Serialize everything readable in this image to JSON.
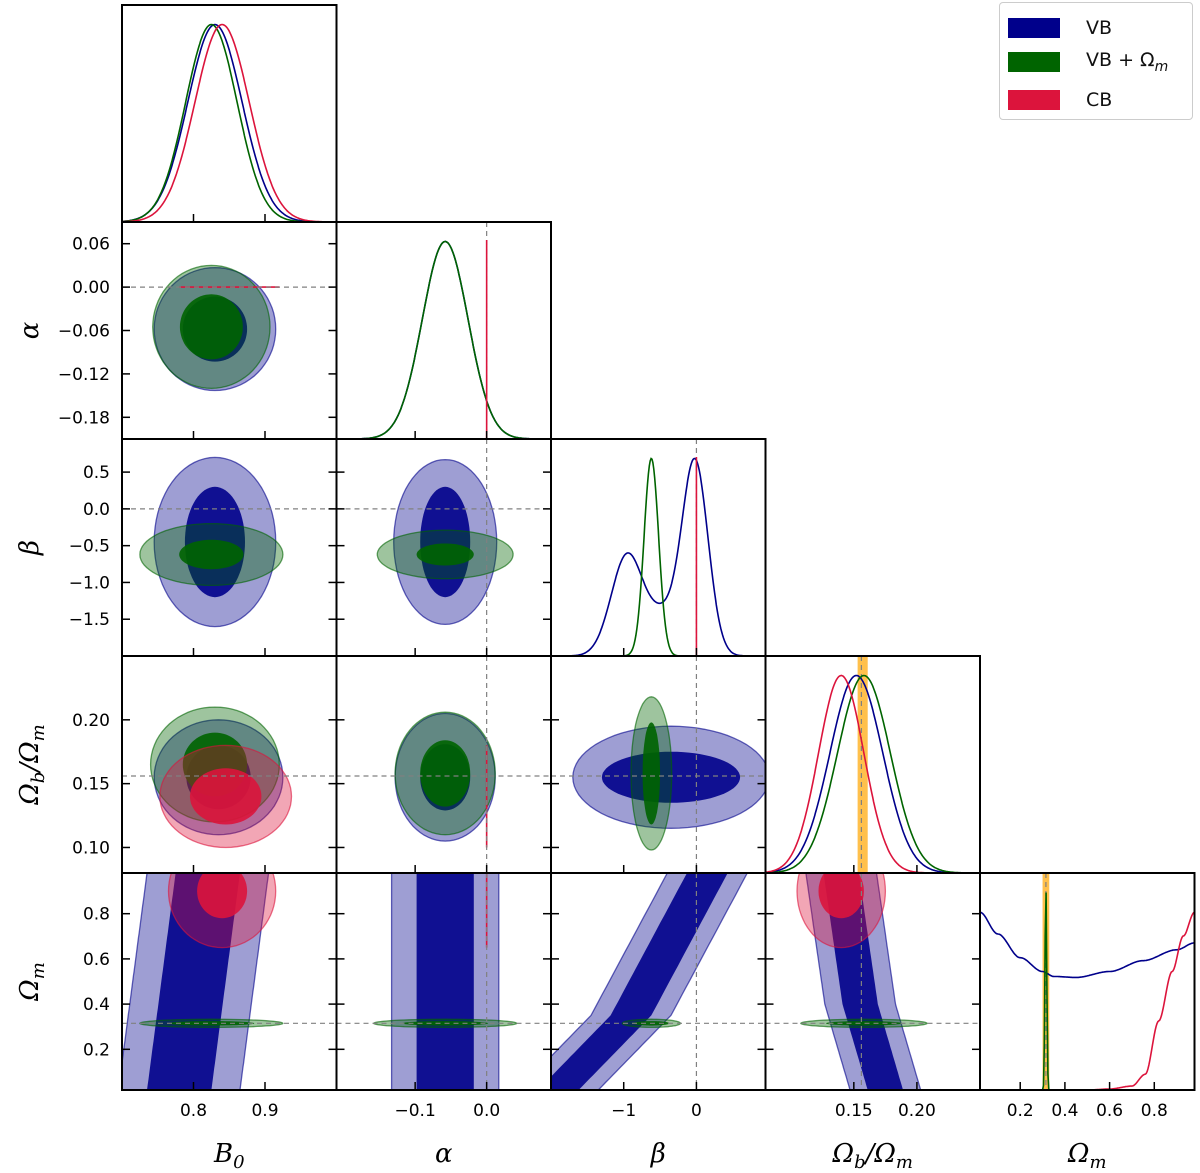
{
  "colors": {
    "vb": "#00008b",
    "vbOm": "#006400",
    "cb": "#dc143c",
    "band": "#ffa500",
    "gray": "#808080",
    "frame": "#000000"
  },
  "legend": {
    "entries": [
      {
        "name": "VB",
        "color": "#00008b"
      },
      {
        "name": "VB + Ω",
        "sub": "m",
        "color": "#006400"
      },
      {
        "name": "CB",
        "color": "#dc143c"
      }
    ]
  },
  "chart_data": {
    "type": "corner",
    "parameters": [
      {
        "key": "B0",
        "label": "B",
        "sub": "0",
        "range": [
          0.7,
          1.0
        ],
        "ticks": [
          0.8,
          0.9
        ],
        "tick_labels": [
          "0.8",
          "0.9"
        ],
        "reference": null
      },
      {
        "key": "alpha",
        "label": "α",
        "range": [
          -0.21,
          0.09
        ],
        "ticks": [
          -0.18,
          -0.12,
          -0.06,
          0.0,
          0.06
        ],
        "tick_labels": [
          "−0.18",
          "−0.12",
          "−0.06",
          "0.00",
          "0.06"
        ],
        "x_ticks": [
          -0.1,
          0.0
        ],
        "x_tick_labels": [
          "−0.1",
          "0.0"
        ],
        "reference": 0.0
      },
      {
        "key": "beta",
        "label": "β",
        "range": [
          -2.0,
          0.95
        ],
        "ticks": [
          -1.5,
          -1.0,
          -0.5,
          0.0,
          0.5
        ],
        "tick_labels": [
          "−1.5",
          "−1.0",
          "−0.5",
          "0.0",
          "0.5"
        ],
        "x_ticks": [
          -1,
          0
        ],
        "x_tick_labels": [
          "−1",
          "0"
        ],
        "reference": 0.0
      },
      {
        "key": "fb",
        "label": "Ω",
        "sub": "b",
        "label2": "/Ω",
        "sub2": "m",
        "range": [
          0.08,
          0.25
        ],
        "ticks": [
          0.1,
          0.15,
          0.2
        ],
        "tick_labels": [
          "0.10",
          "0.15",
          "0.20"
        ],
        "x_ticks": [
          0.15,
          0.2
        ],
        "x_tick_labels": [
          "0.15",
          "0.20"
        ],
        "reference": 0.156,
        "prior_band": [
          0.153,
          0.161
        ]
      },
      {
        "key": "Om",
        "label": "Ω",
        "sub": "m",
        "range": [
          0.02,
          0.98
        ],
        "ticks": [
          0.2,
          0.4,
          0.6,
          0.8
        ],
        "tick_labels": [
          "0.2",
          "0.4",
          "0.6",
          "0.8"
        ],
        "reference": 0.315,
        "prior_band": [
          0.3,
          0.33
        ]
      }
    ],
    "series": [
      {
        "name": "VB",
        "marginals": [
          {
            "type": "gauss",
            "mean": 0.83,
            "sd": 0.038
          },
          {
            "type": "gauss",
            "mean": -0.058,
            "sd": 0.032
          },
          {
            "type": "mix",
            "parts": [
              {
                "mean": -0.02,
                "sd": 0.18,
                "w": 0.65
              },
              {
                "mean": -0.95,
                "sd": 0.22,
                "w": 0.34
              },
              {
                "mean": -0.45,
                "sd": 0.2,
                "w": 0.12
              }
            ]
          },
          {
            "type": "gauss",
            "mean": 0.152,
            "sd": 0.021
          },
          {
            "type": "curve",
            "x": [
              0.02,
              0.1,
              0.2,
              0.3,
              0.35,
              0.45,
              0.6,
              0.75,
              0.9,
              0.98
            ],
            "y": [
              0.9,
              0.79,
              0.67,
              0.6,
              0.575,
              0.57,
              0.6,
              0.655,
              0.71,
              0.745
            ]
          }
        ],
        "contours": [
          {
            "x": 0,
            "y": 1,
            "cx": 0.83,
            "cy": -0.058,
            "r68": [
              0.045,
              0.045
            ],
            "r95": [
              0.085,
              0.085
            ],
            "angle": 0
          },
          {
            "x": 0,
            "y": 2,
            "cx": 0.83,
            "cy": -0.45,
            "r68": [
              0.042,
              0.75
            ],
            "r95": [
              0.085,
              1.15
            ],
            "angle": 0
          },
          {
            "x": 1,
            "y": 2,
            "cx": -0.058,
            "cy": -0.45,
            "r68": [
              0.035,
              0.75
            ],
            "r95": [
              0.072,
              1.12
            ],
            "angle": -10
          },
          {
            "x": 0,
            "y": 3,
            "cx": 0.835,
            "cy": 0.155,
            "r68": [
              0.045,
              0.025
            ],
            "r95": [
              0.09,
              0.045
            ],
            "angle": -45
          },
          {
            "x": 1,
            "y": 3,
            "cx": -0.058,
            "cy": 0.155,
            "r68": [
              0.035,
              0.026
            ],
            "r95": [
              0.07,
              0.05
            ],
            "angle": 0
          },
          {
            "x": 2,
            "y": 3,
            "cx": -0.35,
            "cy": 0.155,
            "r68": [
              0.95,
              0.02
            ],
            "r95": [
              1.35,
              0.04
            ],
            "angle": -20
          },
          {
            "x": 0,
            "y": 4,
            "kind": "band",
            "points": [
              [
                0.78,
                0.02
              ],
              [
                0.8,
                0.5
              ],
              [
                0.82,
                0.98
              ]
            ],
            "w68": 0.045,
            "w95": 0.085
          },
          {
            "x": 1,
            "y": 4,
            "kind": "band",
            "points": [
              [
                -0.058,
                0.02
              ],
              [
                -0.058,
                0.98
              ]
            ],
            "w68": 0.04,
            "w95": 0.075
          },
          {
            "x": 2,
            "y": 4,
            "kind": "band",
            "points": [
              [
                -1.9,
                0.02
              ],
              [
                -0.9,
                0.35
              ],
              [
                0.15,
                0.98
              ]
            ],
            "w68": 0.28,
            "w95": 0.55
          },
          {
            "x": 3,
            "y": 4,
            "kind": "band",
            "points": [
              [
                0.175,
                0.02
              ],
              [
                0.155,
                0.4
              ],
              [
                0.14,
                0.98
              ]
            ],
            "w68": 0.014,
            "w95": 0.028
          }
        ]
      },
      {
        "name": "VB + Ωm",
        "marginals": [
          {
            "type": "gauss",
            "mean": 0.825,
            "sd": 0.036
          },
          {
            "type": "gauss",
            "mean": -0.058,
            "sd": 0.032
          },
          {
            "type": "gauss",
            "mean": -0.62,
            "sd": 0.1
          },
          {
            "type": "gauss",
            "mean": 0.158,
            "sd": 0.021
          },
          {
            "type": "gauss",
            "mean": 0.315,
            "sd": 0.004
          }
        ],
        "contours": [
          {
            "x": 0,
            "y": 1,
            "cx": 0.825,
            "cy": -0.055,
            "r68": [
              0.044,
              0.045
            ],
            "r95": [
              0.082,
              0.085
            ],
            "angle": 0
          },
          {
            "x": 0,
            "y": 2,
            "cx": 0.825,
            "cy": -0.62,
            "r68": [
              0.045,
              0.2
            ],
            "r95": [
              0.1,
              0.42
            ],
            "angle": 10
          },
          {
            "x": 1,
            "y": 2,
            "cx": -0.058,
            "cy": -0.62,
            "r68": [
              0.04,
              0.15
            ],
            "r95": [
              0.095,
              0.33
            ],
            "angle": -18
          },
          {
            "x": 0,
            "y": 3,
            "cx": 0.83,
            "cy": 0.165,
            "r68": [
              0.045,
              0.025
            ],
            "r95": [
              0.09,
              0.045
            ],
            "angle": -40
          },
          {
            "x": 1,
            "y": 3,
            "cx": -0.058,
            "cy": 0.158,
            "r68": [
              0.035,
              0.026
            ],
            "r95": [
              0.07,
              0.048
            ],
            "angle": 0
          },
          {
            "x": 2,
            "y": 3,
            "cx": -0.62,
            "cy": 0.158,
            "r68": [
              0.12,
              0.04
            ],
            "r95": [
              0.28,
              0.06
            ],
            "angle": 0
          },
          {
            "x": 0,
            "y": 4,
            "cx": 0.825,
            "cy": 0.315,
            "r68": [
              0.06,
              0.01
            ],
            "r95": [
              0.1,
              0.018
            ],
            "angle": 0
          },
          {
            "x": 1,
            "y": 4,
            "cx": -0.058,
            "cy": 0.315,
            "r68": [
              0.06,
              0.01
            ],
            "r95": [
              0.1,
              0.018
            ],
            "angle": 0
          },
          {
            "x": 2,
            "y": 4,
            "cx": -0.62,
            "cy": 0.315,
            "r68": [
              0.25,
              0.01
            ],
            "r95": [
              0.4,
              0.018
            ],
            "angle": 0
          },
          {
            "x": 3,
            "y": 4,
            "cx": 0.158,
            "cy": 0.315,
            "r68": [
              0.03,
              0.01
            ],
            "r95": [
              0.05,
              0.018
            ],
            "angle": 0
          }
        ]
      },
      {
        "name": "CB",
        "marginals": [
          {
            "type": "gauss",
            "mean": 0.84,
            "sd": 0.038
          },
          {
            "type": "delta",
            "at": 0.0
          },
          {
            "type": "delta",
            "at": 0.0
          },
          {
            "type": "gauss",
            "mean": 0.14,
            "sd": 0.018
          },
          {
            "type": "curve",
            "x": [
              0.02,
              0.5,
              0.6,
              0.7,
              0.76,
              0.82,
              0.88,
              0.93,
              0.98
            ],
            "y": [
              0.0,
              0.0,
              0.005,
              0.02,
              0.08,
              0.35,
              0.6,
              0.78,
              0.9
            ]
          }
        ],
        "contours": [
          {
            "x": 0,
            "y": 1,
            "kind": "hline",
            "from": 0.78,
            "to": 0.92,
            "at": 0.0
          },
          {
            "x": 0,
            "y": 3,
            "cx": 0.845,
            "cy": 0.14,
            "r68": [
              0.05,
              0.022
            ],
            "r95": [
              0.092,
              0.04
            ],
            "angle": -35
          },
          {
            "x": 1,
            "y": 3,
            "kind": "vline",
            "at": 0.0,
            "from": 0.1,
            "to": 0.18
          },
          {
            "x": 0,
            "y": 4,
            "cx": 0.84,
            "cy": 0.9,
            "r68": [
              0.035,
              0.12
            ],
            "r95": [
              0.075,
              0.25
            ],
            "angle": 0
          },
          {
            "x": 1,
            "y": 4,
            "kind": "vline",
            "at": 0.0,
            "from": 0.65,
            "to": 0.98
          },
          {
            "x": 3,
            "y": 4,
            "cx": 0.14,
            "cy": 0.9,
            "r68": [
              0.018,
              0.12
            ],
            "r95": [
              0.035,
              0.25
            ],
            "angle": 0
          }
        ]
      }
    ]
  }
}
